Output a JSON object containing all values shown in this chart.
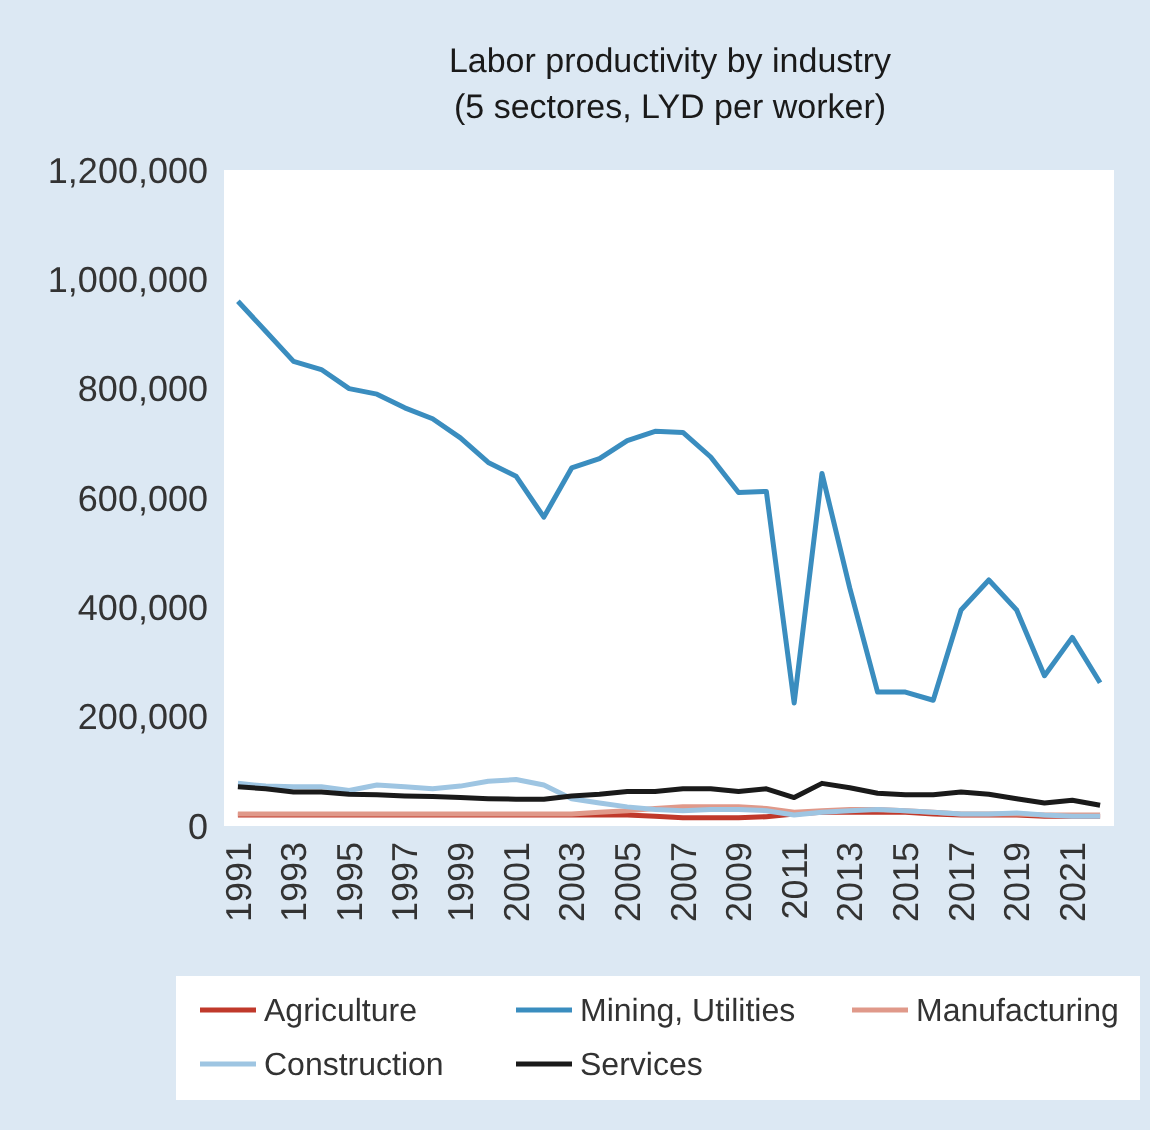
{
  "chart_data": {
    "type": "line",
    "title": "Labor productivity by industry",
    "subtitle": "(5 sectores, LYD per worker)",
    "x": [
      1991,
      1992,
      1993,
      1994,
      1995,
      1996,
      1997,
      1998,
      1999,
      2000,
      2001,
      2002,
      2003,
      2004,
      2005,
      2006,
      2007,
      2008,
      2009,
      2010,
      2011,
      2012,
      2013,
      2014,
      2015,
      2016,
      2017,
      2018,
      2019,
      2020,
      2021,
      2022
    ],
    "xlim": [
      1990.5,
      2022.5
    ],
    "xticks": [
      1991,
      1993,
      1995,
      1997,
      1999,
      2001,
      2003,
      2005,
      2007,
      2009,
      2011,
      2013,
      2015,
      2017,
      2019,
      2021
    ],
    "ylim": [
      0,
      1200000
    ],
    "yticks": [
      {
        "value": 0,
        "label": "0"
      },
      {
        "value": 200000,
        "label": "200,000"
      },
      {
        "value": 400000,
        "label": "400,000"
      },
      {
        "value": 600000,
        "label": "600,000"
      },
      {
        "value": 800000,
        "label": "800,000"
      },
      {
        "value": 1000000,
        "label": "1,000,000"
      },
      {
        "value": 1200000,
        "label": "1,200,000"
      }
    ],
    "legend": "bottom",
    "grid": false,
    "series": [
      {
        "name": "Agriculture",
        "color": "#c0392b",
        "values": [
          20000,
          20000,
          20000,
          20000,
          20000,
          20000,
          20000,
          20000,
          20000,
          20000,
          20000,
          20000,
          20000,
          20000,
          20000,
          18000,
          15000,
          15000,
          15000,
          17000,
          22000,
          25000,
          25000,
          25000,
          25000,
          22000,
          20000,
          20000,
          20000,
          18000,
          18000,
          18000
        ]
      },
      {
        "name": "Mining, Utilities",
        "color": "#3a8dbf",
        "values": [
          960000,
          905000,
          850000,
          835000,
          800000,
          790000,
          765000,
          745000,
          710000,
          665000,
          640000,
          565000,
          655000,
          672000,
          705000,
          722000,
          720000,
          675000,
          610000,
          612000,
          225000,
          645000,
          435000,
          245000,
          245000,
          230000,
          395000,
          450000,
          395000,
          275000,
          345000,
          262000
        ]
      },
      {
        "name": "Manufacturing",
        "color": "#e0998a",
        "values": [
          22000,
          22000,
          22000,
          22000,
          22000,
          22000,
          22000,
          22000,
          22000,
          22000,
          22000,
          22000,
          22000,
          25000,
          28000,
          32000,
          35000,
          35000,
          35000,
          32000,
          25000,
          28000,
          30000,
          30000,
          28000,
          25000,
          22000,
          22000,
          22000,
          20000,
          20000,
          20000
        ]
      },
      {
        "name": "Construction",
        "color": "#9ec5e2",
        "values": [
          78000,
          73000,
          72000,
          72000,
          65000,
          75000,
          72000,
          68000,
          73000,
          82000,
          85000,
          75000,
          50000,
          42000,
          35000,
          30000,
          28000,
          30000,
          30000,
          28000,
          20000,
          25000,
          28000,
          30000,
          28000,
          25000,
          22000,
          22000,
          24000,
          20000,
          18000,
          18000
        ]
      },
      {
        "name": "Services",
        "color": "#1a1a1a",
        "values": [
          72000,
          68000,
          62000,
          62000,
          58000,
          57000,
          55000,
          54000,
          52000,
          50000,
          49000,
          49000,
          55000,
          58000,
          63000,
          63000,
          68000,
          68000,
          63000,
          68000,
          52000,
          78000,
          70000,
          60000,
          57000,
          57000,
          62000,
          58000,
          50000,
          42000,
          47000,
          38000
        ]
      }
    ]
  }
}
